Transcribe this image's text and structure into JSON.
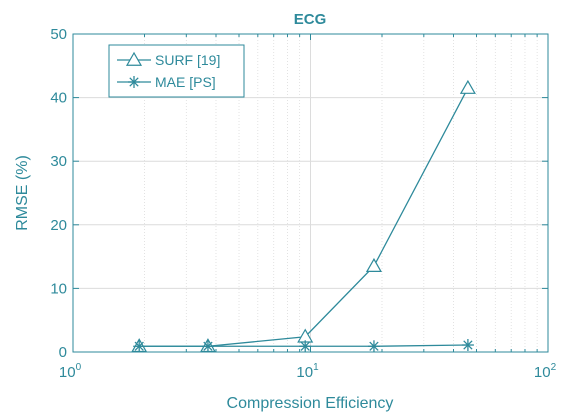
{
  "chart_data": {
    "type": "line",
    "title": "ECG",
    "xlabel": "Compression Efficiency",
    "ylabel": "RMSE (%)",
    "xscale": "log",
    "xlim": [
      1,
      100
    ],
    "ylim": [
      0,
      50
    ],
    "grid": true,
    "legend_position": "top-left",
    "x_ticks": [
      {
        "base": "10",
        "exp": "0"
      },
      {
        "base": "10",
        "exp": "1"
      },
      {
        "base": "10",
        "exp": "2"
      }
    ],
    "y_ticks": [
      "0",
      "10",
      "20",
      "30",
      "40",
      "50"
    ],
    "series": [
      {
        "name": "SURF [19]",
        "marker": "triangle",
        "x": [
          1.9,
          3.7,
          9.5,
          18.5,
          46
        ],
        "y": [
          0.9,
          0.9,
          2.4,
          13.5,
          41.5
        ]
      },
      {
        "name": "MAE [PS]",
        "marker": "asterisk",
        "x": [
          1.9,
          3.7,
          9.5,
          18.5,
          46
        ],
        "y": [
          0.9,
          0.9,
          0.9,
          0.9,
          1.1
        ]
      }
    ],
    "colors": {
      "line": "#2e8a9b",
      "grid": "#dcdcdc",
      "axis": "#2e8a9b"
    }
  }
}
